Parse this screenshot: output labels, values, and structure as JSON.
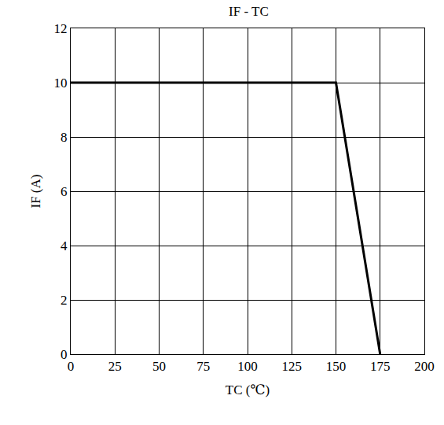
{
  "chart_data": {
    "type": "line",
    "title": "IF - TC",
    "x_label": "TC (℃)",
    "y_label": "IF (A)",
    "x": [
      0,
      150,
      175
    ],
    "series": [
      {
        "name": "IF",
        "color": "#000000",
        "values": [
          10,
          10,
          0
        ]
      }
    ],
    "xlim": [
      0,
      200
    ],
    "xticks": [
      0,
      25,
      50,
      75,
      100,
      125,
      150,
      175,
      200
    ],
    "ylim": [
      0,
      12
    ],
    "yticks": [
      0,
      2,
      4,
      6,
      8,
      10,
      12
    ],
    "grid": true
  }
}
